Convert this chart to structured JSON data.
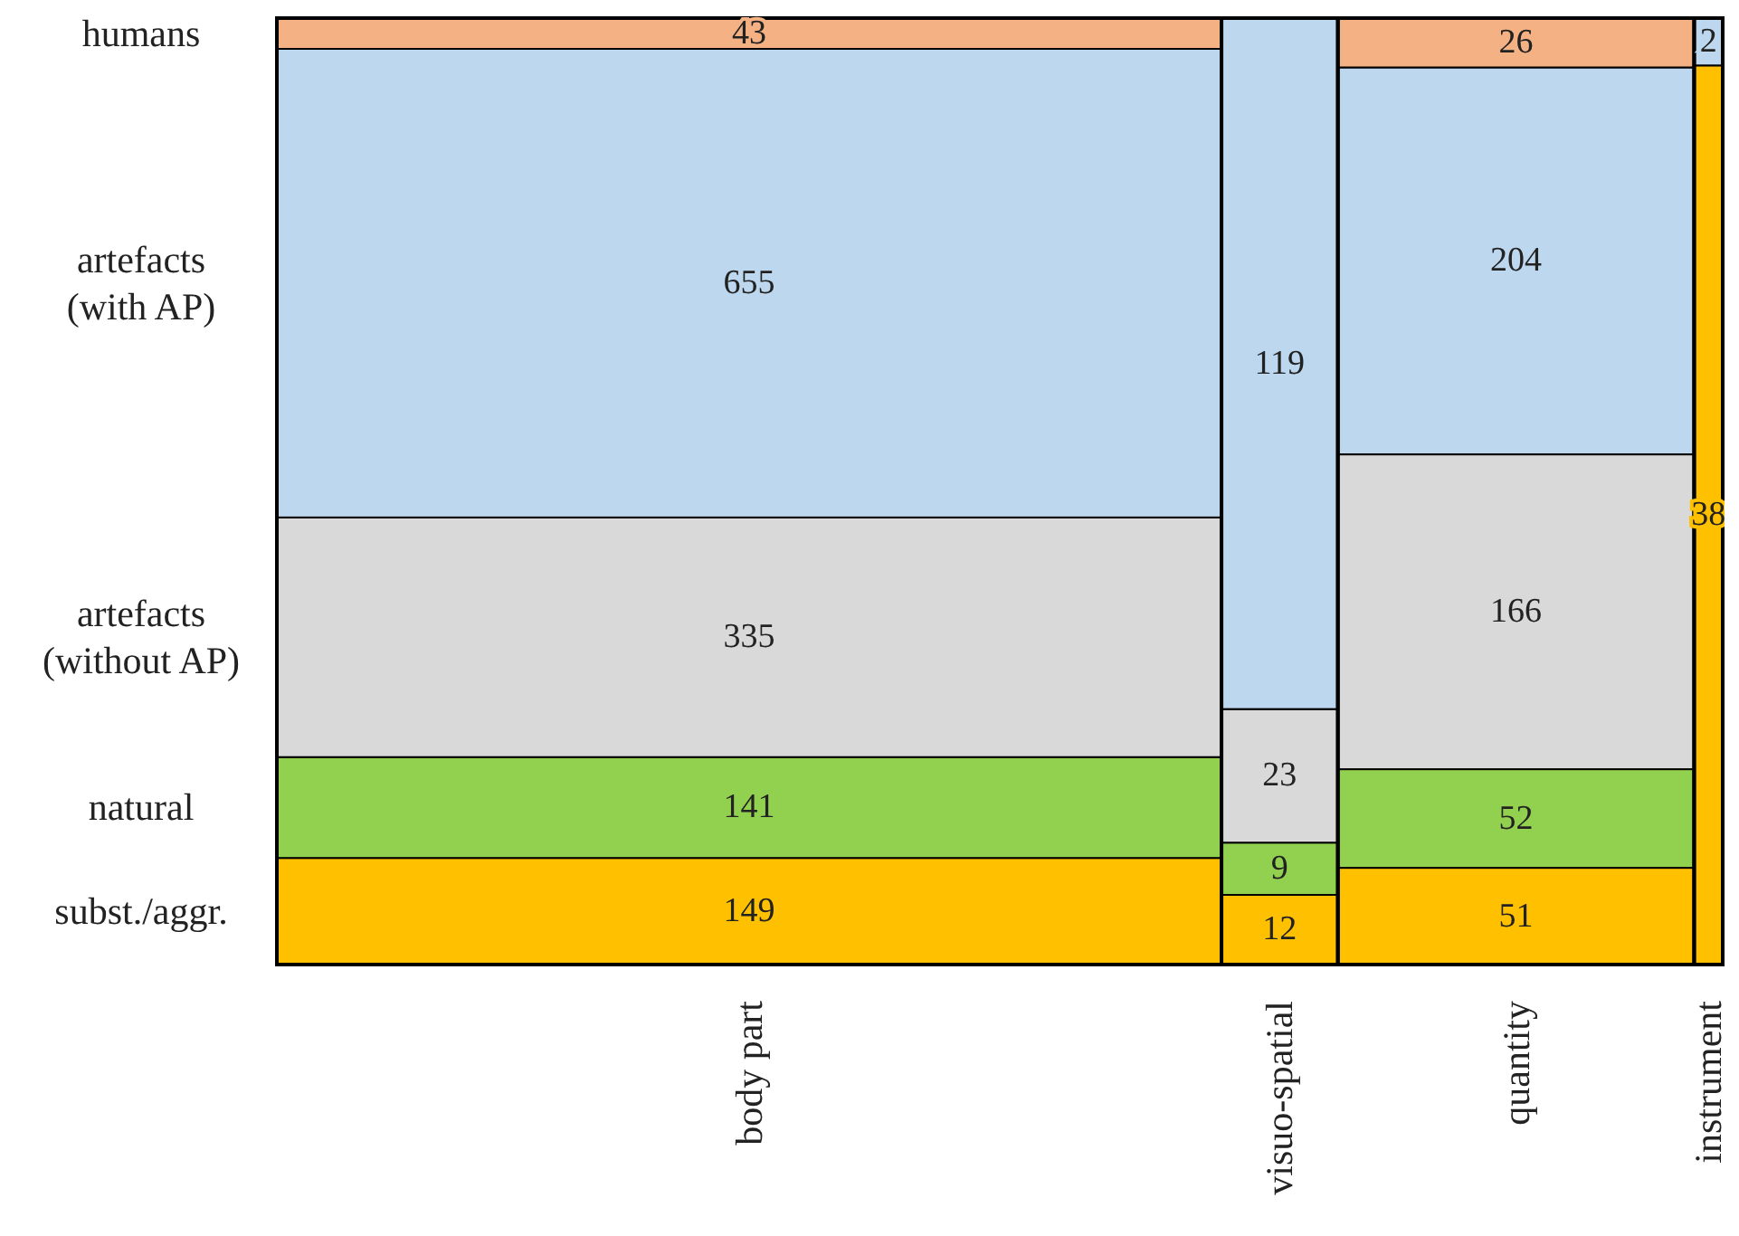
{
  "chart_data": {
    "type": "other",
    "data_labels": true,
    "categories": [
      "body part",
      "visuo-spatial",
      "quantity",
      "instrument"
    ],
    "series": [
      {
        "name": "subst./aggr.",
        "color": "#ffc000",
        "values": [
          149,
          12,
          51,
          38
        ]
      },
      {
        "name": "natural",
        "color": "#92d050",
        "values": [
          141,
          9,
          52,
          null
        ]
      },
      {
        "name": "artefacts (without AP)",
        "color": "#d9d9d9",
        "values": [
          335,
          23,
          166,
          null
        ]
      },
      {
        "name": "artefacts (with AP)",
        "color": "#bdd7ee",
        "values": [
          655,
          119,
          204,
          2
        ]
      },
      {
        "name": "humans",
        "color": "#f4b183",
        "values": [
          43,
          null,
          26,
          null
        ]
      }
    ]
  }
}
